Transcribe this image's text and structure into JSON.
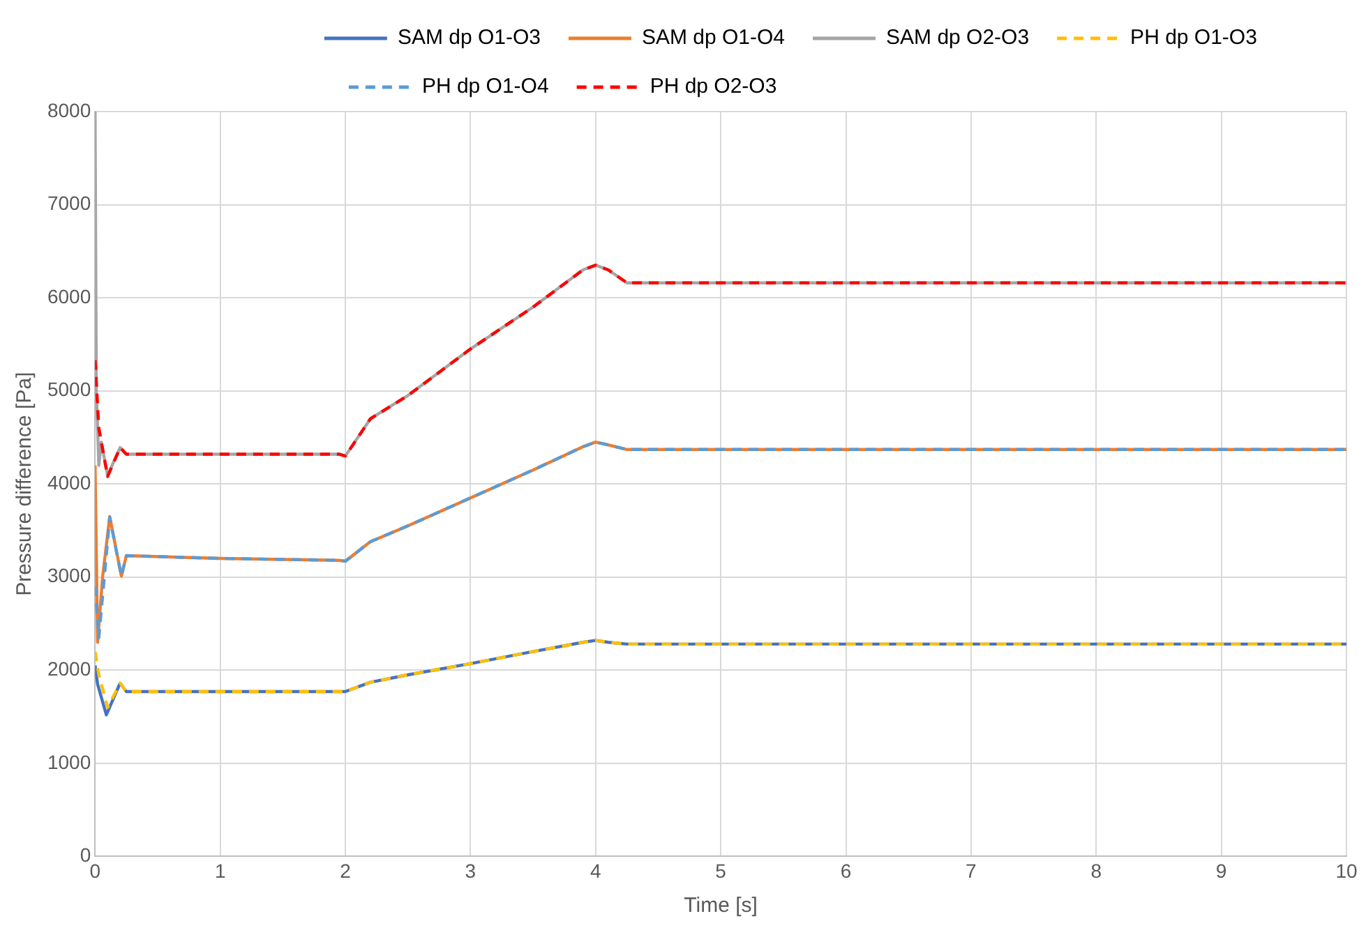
{
  "chart_data": {
    "type": "line",
    "xlabel": "Time [s]",
    "ylabel": "Pressure difference [Pa]",
    "xlim": [
      0,
      10
    ],
    "xticks": [
      0,
      1,
      2,
      3,
      4,
      5,
      6,
      7,
      8,
      9,
      10
    ],
    "ylim": [
      0,
      8000
    ],
    "yticks": [
      0,
      1000,
      2000,
      3000,
      4000,
      5000,
      6000,
      7000,
      8000
    ],
    "grid": true,
    "legend": "top",
    "marker": "none",
    "series": [
      {
        "name": "SAM dp O1-O3",
        "color": "#4472c4",
        "line_style": "solid",
        "x": [
          0,
          0.02,
          0.09,
          0.2,
          0.25,
          1,
          1.95,
          2.0,
          2.2,
          2.5,
          3,
          3.5,
          3.9,
          4.0,
          4.1,
          4.25,
          5,
          10
        ],
        "values": [
          2050,
          1850,
          1520,
          1860,
          1770,
          1770,
          1770,
          1770,
          1870,
          1950,
          2070,
          2200,
          2300,
          2320,
          2300,
          2280,
          2280,
          2280
        ]
      },
      {
        "name": "SAM dp O1-O4",
        "color": "#ed7d31",
        "line_style": "solid",
        "x": [
          0,
          0.02,
          0.06,
          0.117,
          0.21,
          0.25,
          1,
          1.95,
          2.0,
          2.2,
          2.5,
          3,
          3.5,
          3.9,
          4.0,
          4.1,
          4.25,
          5,
          10
        ],
        "values": [
          4200,
          2300,
          3000,
          3650,
          3010,
          3230,
          3200,
          3180,
          3170,
          3380,
          3550,
          3850,
          4150,
          4400,
          4450,
          4420,
          4370,
          4370,
          4370
        ]
      },
      {
        "name": "SAM dp O2-O3",
        "color": "#a5a5a5",
        "line_style": "solid",
        "x": [
          0,
          0.01,
          0.03,
          0.05,
          0.1,
          0.2,
          0.25,
          1,
          1.95,
          2.0,
          2.2,
          2.5,
          3,
          3.5,
          3.9,
          4.0,
          4.1,
          4.25,
          5,
          10
        ],
        "values": [
          8000,
          5000,
          4200,
          4450,
          4090,
          4390,
          4320,
          4320,
          4320,
          4300,
          4700,
          4950,
          5450,
          5900,
          6300,
          6350,
          6300,
          6160,
          6160,
          6160
        ]
      },
      {
        "name": "PH dp O1-O3",
        "color": "#ffc000",
        "line_style": "dashed",
        "x": [
          0,
          0.03,
          0.1,
          0.2,
          0.25,
          1,
          1.95,
          2.0,
          2.2,
          2.5,
          3,
          3.5,
          3.9,
          4.0,
          4.1,
          4.25,
          5,
          10
        ],
        "values": [
          2200,
          1950,
          1600,
          1860,
          1770,
          1770,
          1770,
          1770,
          1870,
          1950,
          2070,
          2200,
          2300,
          2320,
          2300,
          2280,
          2280,
          2280
        ]
      },
      {
        "name": "PH dp O1-O4",
        "color": "#5b9bd5",
        "line_style": "dashed",
        "x": [
          0,
          0.03,
          0.117,
          0.21,
          0.25,
          1,
          1.95,
          2.0,
          2.2,
          2.5,
          3,
          3.5,
          3.9,
          4.0,
          4.1,
          4.25,
          5,
          10
        ],
        "values": [
          2900,
          2350,
          3640,
          3010,
          3230,
          3200,
          3180,
          3170,
          3380,
          3550,
          3850,
          4150,
          4400,
          4450,
          4420,
          4370,
          4370,
          4370
        ]
      },
      {
        "name": "PH dp O2-O3",
        "color": "#ff0000",
        "line_style": "dashed",
        "x": [
          0,
          0.03,
          0.1,
          0.2,
          0.25,
          1,
          1.95,
          2.0,
          2.2,
          2.5,
          3,
          3.5,
          3.9,
          4.0,
          4.1,
          4.25,
          5,
          10
        ],
        "values": [
          5330,
          4600,
          4080,
          4390,
          4320,
          4320,
          4320,
          4300,
          4700,
          4950,
          5450,
          5900,
          6300,
          6350,
          6300,
          6160,
          6160,
          6160
        ]
      }
    ]
  }
}
